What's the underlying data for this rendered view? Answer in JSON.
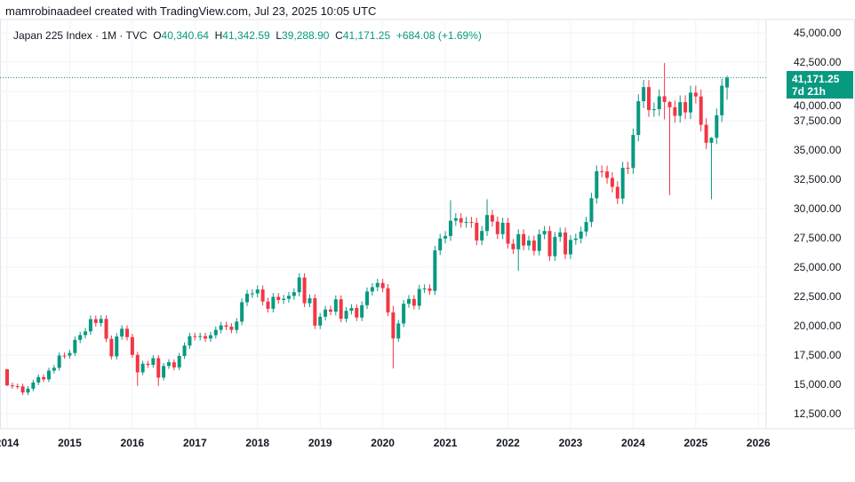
{
  "credit": "mamrobinaadeel created with TradingView.com, Jul 23, 2025 10:05 UTC",
  "legend": {
    "symbol": "Japan 225 Index · 1M · TVC",
    "o_label": "O",
    "o": "40,340.64",
    "h_label": "H",
    "h": "41,342.59",
    "l_label": "L",
    "l": "39,288.90",
    "c_label": "C",
    "c": "41,171.25",
    "change": "+684.08 (+1.69%)"
  },
  "price_label": {
    "value": "41,171.25",
    "countdown": "7d 21h"
  },
  "colors": {
    "up": "#089981",
    "down": "#f23645",
    "grid": "#f0f3fa"
  },
  "chart_data": {
    "type": "candlestick",
    "title": "Japan 225 Index · 1M · TVC",
    "interval": "monthly",
    "start": "2014-01",
    "ylim": [
      10500,
      46200
    ],
    "y_ticks": [
      12500,
      15000,
      17500,
      20000,
      22500,
      25000,
      27500,
      30000,
      32500,
      35000,
      37500,
      40000,
      42500,
      45000
    ],
    "y_tick_labels": [
      "12,500.00",
      "15,000.00",
      "17,500.00",
      "20,000.00",
      "22,500.00",
      "25,000.00",
      "27,500.00",
      "30,000.00",
      "32,500.00",
      "35,000.00",
      "37,500.00",
      "40,000.00",
      "42,500.00",
      "45,000.00"
    ],
    "x_tick_labels": [
      "2014",
      "2015",
      "2016",
      "2017",
      "2018",
      "2019",
      "2020",
      "2021",
      "2022",
      "2023",
      "2024",
      "2025",
      "2026"
    ],
    "last_price": 41171.25,
    "first_open": 16291,
    "close": [
      14914,
      14841,
      14827,
      14304,
      14632,
      15162,
      15621,
      15425,
      16173,
      16413,
      17459,
      17450,
      17674,
      18797,
      19206,
      19520,
      20563,
      20235,
      20585,
      18890,
      17388,
      19083,
      19747,
      19033,
      17518,
      16026,
      16758,
      16666,
      17234,
      15575,
      16569,
      16887,
      16449,
      17425,
      18308,
      19114,
      19041,
      19118,
      18909,
      19196,
      19650,
      20033,
      19925,
      19646,
      20356,
      22011,
      22724,
      22764,
      23098,
      22068,
      21454,
      22467,
      22201,
      22304,
      22553,
      22865,
      24120,
      21920,
      22351,
      20014,
      20773,
      21385,
      21205,
      22258,
      20601,
      21275,
      21521,
      20704,
      21755,
      22927,
      23293,
      23656,
      23205,
      21142,
      18917,
      20193,
      21877,
      22288,
      21710,
      23139,
      23185,
      22977,
      26433,
      27444,
      27663,
      28966,
      29178,
      28812,
      28860,
      28791,
      27283,
      28089,
      29452,
      28892,
      27821,
      28791,
      27001,
      26526,
      27821,
      26847,
      27279,
      26393,
      27801,
      28091,
      25937,
      27587,
      27968,
      26094,
      27327,
      27445,
      28041,
      28856,
      30887,
      33189,
      33172,
      32619,
      31857,
      30858,
      33486,
      33464,
      36286,
      39166,
      40369,
      38405,
      38487,
      39583,
      39101,
      38647,
      37919,
      39081,
      38208,
      39894,
      39572,
      37155,
      35617,
      36045,
      37965,
      40487,
      41171.25
    ],
    "wick_default_pct": 1.5,
    "overrides": {
      "0": {
        "h": 16320,
        "l": 14847
      },
      "25": {
        "l": 14865
      },
      "29": {
        "l": 14864
      },
      "74": {
        "h": 21700,
        "l": 16358
      },
      "85": {
        "h": 30714
      },
      "92": {
        "h": 30795
      },
      "98": {
        "l": 24681
      },
      "126": {
        "h": 42426,
        "l": 37611
      },
      "127": {
        "h": 39189,
        "l": 31156
      },
      "135": {
        "h": 36100,
        "l": 30792
      },
      "138": {
        "o": 40340.64,
        "h": 41342.59,
        "l": 39288.9
      }
    }
  }
}
